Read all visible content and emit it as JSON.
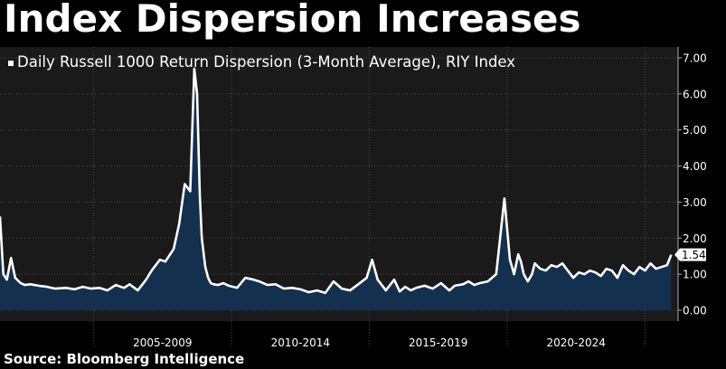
{
  "headline": "Index Dispersion Increases",
  "source": "Source: Bloomberg Intelligence",
  "colors": {
    "background": "#000000",
    "plot_background": "#1a1a1a",
    "line": "#ffffff",
    "area_fill": "#14304f",
    "grid": "#4a4a4a",
    "text": "#ffffff"
  },
  "chart_data": {
    "type": "area",
    "legend": "Daily Russell 1000 Return Dispersion (3-Month Average), RIY Index",
    "legend_position": "top-left",
    "x_axis": {
      "range": [
        2001.6,
        2026.2
      ],
      "tick_labels": [
        "2005-2009",
        "2010-2014",
        "2015-2019",
        "2020-2024"
      ],
      "tick_centers": [
        2007.5,
        2012.5,
        2017.5,
        2022.5
      ],
      "dividers": [
        2005.0,
        2010.0,
        2015.0,
        2020.0,
        2025.0
      ]
    },
    "y_axis": {
      "range": [
        -0.3,
        7.3
      ],
      "ticks": [
        0.0,
        1.0,
        2.0,
        3.0,
        4.0,
        5.0,
        6.0,
        7.0
      ],
      "tick_labels": [
        "0.00",
        "1.00",
        "2.00",
        "3.00",
        "4.00",
        "5.00",
        "6.00",
        "7.00"
      ],
      "position": "right",
      "grid": true
    },
    "last_value_label": "1.54",
    "series": [
      {
        "name": "Daily Russell 1000 Return Dispersion (3-Month Average), RIY Index",
        "x": [
          2001.6,
          2001.72,
          2001.85,
          2002.0,
          2002.15,
          2002.35,
          2002.5,
          2002.7,
          2003.0,
          2003.3,
          2003.6,
          2004.0,
          2004.3,
          2004.6,
          2004.9,
          2005.2,
          2005.5,
          2005.8,
          2006.1,
          2006.3,
          2006.6,
          2006.9,
          2007.1,
          2007.4,
          2007.6,
          2007.9,
          2008.1,
          2008.3,
          2008.5,
          2008.65,
          2008.75,
          2008.85,
          2008.92,
          2009.0,
          2009.05,
          2009.15,
          2009.25,
          2009.35,
          2009.5,
          2009.7,
          2009.9,
          2010.2,
          2010.5,
          2010.8,
          2011.0,
          2011.3,
          2011.6,
          2011.9,
          2012.2,
          2012.5,
          2012.8,
          2013.1,
          2013.4,
          2013.7,
          2014.0,
          2014.3,
          2014.6,
          2014.9,
          2015.1,
          2015.3,
          2015.6,
          2015.9,
          2016.1,
          2016.3,
          2016.5,
          2016.7,
          2017.0,
          2017.3,
          2017.6,
          2017.9,
          2018.1,
          2018.4,
          2018.6,
          2018.8,
          2019.0,
          2019.3,
          2019.6,
          2019.9,
          2020.1,
          2020.25,
          2020.4,
          2020.5,
          2020.6,
          2020.75,
          2020.9,
          2021.0,
          2021.2,
          2021.4,
          2021.6,
          2021.8,
          2022.0,
          2022.2,
          2022.4,
          2022.6,
          2022.8,
          2023.0,
          2023.2,
          2023.4,
          2023.6,
          2023.8,
          2024.0,
          2024.2,
          2024.4,
          2024.6,
          2024.8,
          2025.0,
          2025.2,
          2025.4,
          2025.6,
          2025.8,
          2025.95
        ],
        "values": [
          2.6,
          1.0,
          0.85,
          1.45,
          0.9,
          0.75,
          0.7,
          0.72,
          0.68,
          0.65,
          0.6,
          0.62,
          0.58,
          0.65,
          0.6,
          0.62,
          0.55,
          0.7,
          0.62,
          0.72,
          0.55,
          0.85,
          1.1,
          1.4,
          1.35,
          1.7,
          2.4,
          3.5,
          3.3,
          6.7,
          6.0,
          3.2,
          2.0,
          1.5,
          1.2,
          0.9,
          0.75,
          0.72,
          0.7,
          0.75,
          0.68,
          0.62,
          0.9,
          0.85,
          0.8,
          0.7,
          0.72,
          0.6,
          0.62,
          0.58,
          0.5,
          0.55,
          0.48,
          0.8,
          0.6,
          0.55,
          0.72,
          0.9,
          1.4,
          0.85,
          0.55,
          0.85,
          0.52,
          0.65,
          0.55,
          0.62,
          0.68,
          0.6,
          0.75,
          0.55,
          0.68,
          0.72,
          0.8,
          0.7,
          0.75,
          0.8,
          1.0,
          3.1,
          1.4,
          1.0,
          1.55,
          1.35,
          1.0,
          0.8,
          1.0,
          1.3,
          1.15,
          1.1,
          1.25,
          1.2,
          1.3,
          1.1,
          0.9,
          1.05,
          1.0,
          1.1,
          1.05,
          0.95,
          1.15,
          1.1,
          0.9,
          1.25,
          1.1,
          1.0,
          1.2,
          1.1,
          1.3,
          1.15,
          1.2,
          1.25,
          1.54
        ]
      }
    ]
  }
}
